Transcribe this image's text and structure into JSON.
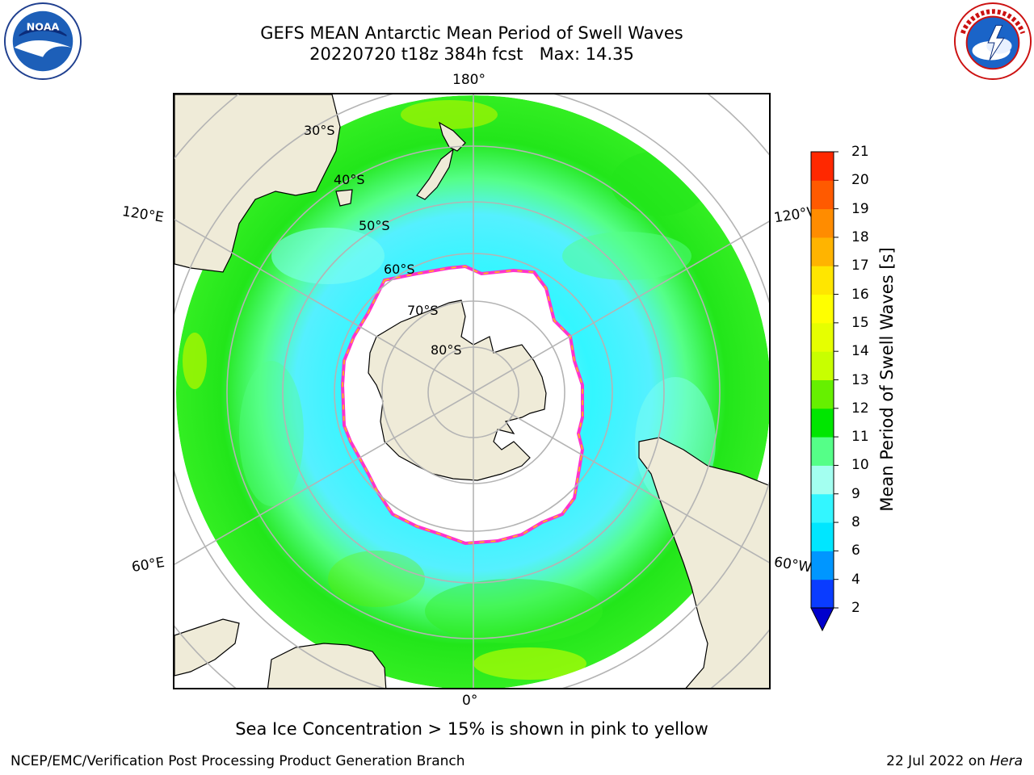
{
  "title": {
    "line1": "GEFS MEAN Antarctic Mean Period of Swell Waves",
    "line2": "20220720 t18z 384h fcst   Max: 14.35"
  },
  "map": {
    "projection": "south-polar-stereographic",
    "land_color": "#efebd8",
    "ice_note_colors": [
      "#ff33cc",
      "#ffcc00"
    ],
    "longitude_labels": {
      "top": "180°",
      "bottom": "0°",
      "upper_left": "120°E",
      "upper_right": "120°W",
      "lower_left": "60°E",
      "lower_right": "60°W"
    },
    "latitude_labels": [
      "30°S",
      "40°S",
      "50°S",
      "60°S",
      "70°S",
      "80°S"
    ]
  },
  "colorbar": {
    "label": "Mean Period of Swell Waves [s]",
    "ticks": [
      "2",
      "4",
      "6",
      "8",
      "9",
      "10",
      "11",
      "12",
      "13",
      "14",
      "15",
      "16",
      "17",
      "18",
      "19",
      "20",
      "21"
    ],
    "colors": [
      "#0a3cff",
      "#0096ff",
      "#00e6ff",
      "#33f6ff",
      "#a3fff0",
      "#55ff88",
      "#00e600",
      "#66f000",
      "#c8ff00",
      "#e6ff00",
      "#ffff00",
      "#ffe600",
      "#ffb400",
      "#ff8c00",
      "#ff5a00",
      "#ff2800"
    ],
    "extend_color": "#0000cc"
  },
  "subtitle": "Sea Ice Concentration > 15% is shown in pink to yellow",
  "footer": {
    "left": "NCEP/EMC/Verification Post Processing Product Generation Branch",
    "date": "22 Jul 2022 on",
    "machine": "Hera"
  },
  "logos": {
    "left_icon": "noaa-logo-icon",
    "right_icon": "nws-logo-icon"
  }
}
